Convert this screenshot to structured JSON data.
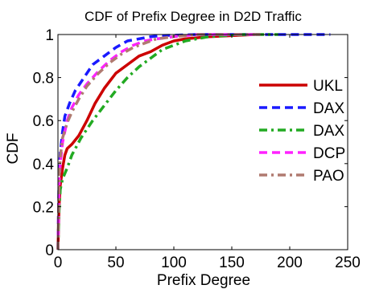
{
  "chart_data": {
    "type": "line",
    "title": "CDF of Prefix Degree in D2D Traffic",
    "xlabel": "Prefix Degree",
    "ylabel": "CDF",
    "xlim": [
      0,
      250
    ],
    "ylim": [
      0,
      1
    ],
    "xticks": [
      0,
      50,
      100,
      150,
      200,
      250
    ],
    "yticks": [
      0,
      0.2,
      0.4,
      0.6,
      0.8,
      1
    ],
    "xtick_labels": [
      "0",
      "50",
      "100",
      "150",
      "200",
      "250"
    ],
    "ytick_labels": [
      "0",
      "0.2",
      "0.4",
      "0.6",
      "0.8",
      "1"
    ],
    "grid": false,
    "legend_position": "right",
    "series": [
      {
        "name": "UKL",
        "color": "#cc0000",
        "dash": "solid",
        "x": [
          0,
          1,
          2,
          4,
          6,
          8,
          12,
          18,
          25,
          32,
          40,
          50,
          60,
          70,
          80,
          90,
          100,
          110,
          130,
          170
        ],
        "y": [
          0,
          0.2,
          0.3,
          0.38,
          0.44,
          0.47,
          0.49,
          0.53,
          0.6,
          0.68,
          0.75,
          0.82,
          0.86,
          0.9,
          0.92,
          0.95,
          0.97,
          0.98,
          0.99,
          1.0
        ]
      },
      {
        "name": "DAX",
        "color": "#1a1aff",
        "dash": "dash",
        "x": [
          0,
          1,
          2,
          4,
          6,
          10,
          15,
          20,
          30,
          40,
          50,
          60,
          70,
          80,
          90,
          120,
          200,
          235
        ],
        "y": [
          0,
          0.35,
          0.45,
          0.55,
          0.62,
          0.68,
          0.74,
          0.78,
          0.86,
          0.9,
          0.94,
          0.97,
          0.98,
          0.99,
          0.995,
          1.0,
          1.0,
          1.0
        ]
      },
      {
        "name": "DAX",
        "color": "#22aa22",
        "dash": "dashdot",
        "x": [
          0,
          1,
          2,
          4,
          8,
          12,
          20,
          30,
          40,
          50,
          60,
          70,
          80,
          90,
          100,
          110,
          130,
          160,
          190
        ],
        "y": [
          0,
          0.18,
          0.28,
          0.33,
          0.38,
          0.44,
          0.52,
          0.6,
          0.67,
          0.74,
          0.8,
          0.85,
          0.89,
          0.93,
          0.95,
          0.97,
          0.99,
          1.0,
          1.0
        ]
      },
      {
        "name": "DCP",
        "color": "#ff22ff",
        "dash": "dash",
        "x": [
          0,
          1,
          2,
          4,
          8,
          12,
          18,
          25,
          35,
          45,
          55,
          65,
          75,
          85,
          100,
          120,
          150,
          170
        ],
        "y": [
          0,
          0.3,
          0.4,
          0.5,
          0.6,
          0.66,
          0.72,
          0.77,
          0.83,
          0.88,
          0.92,
          0.95,
          0.97,
          0.98,
          0.99,
          1.0,
          1.0,
          1.0
        ]
      },
      {
        "name": "PAO",
        "color": "#b07a70",
        "dash": "dashdot",
        "x": [
          0,
          1,
          2,
          4,
          8,
          12,
          18,
          25,
          35,
          45,
          55,
          65,
          75,
          85,
          100,
          120,
          150,
          175
        ],
        "y": [
          0,
          0.32,
          0.43,
          0.52,
          0.59,
          0.64,
          0.7,
          0.76,
          0.82,
          0.87,
          0.91,
          0.94,
          0.96,
          0.98,
          0.99,
          1.0,
          1.0,
          1.0
        ]
      }
    ]
  }
}
